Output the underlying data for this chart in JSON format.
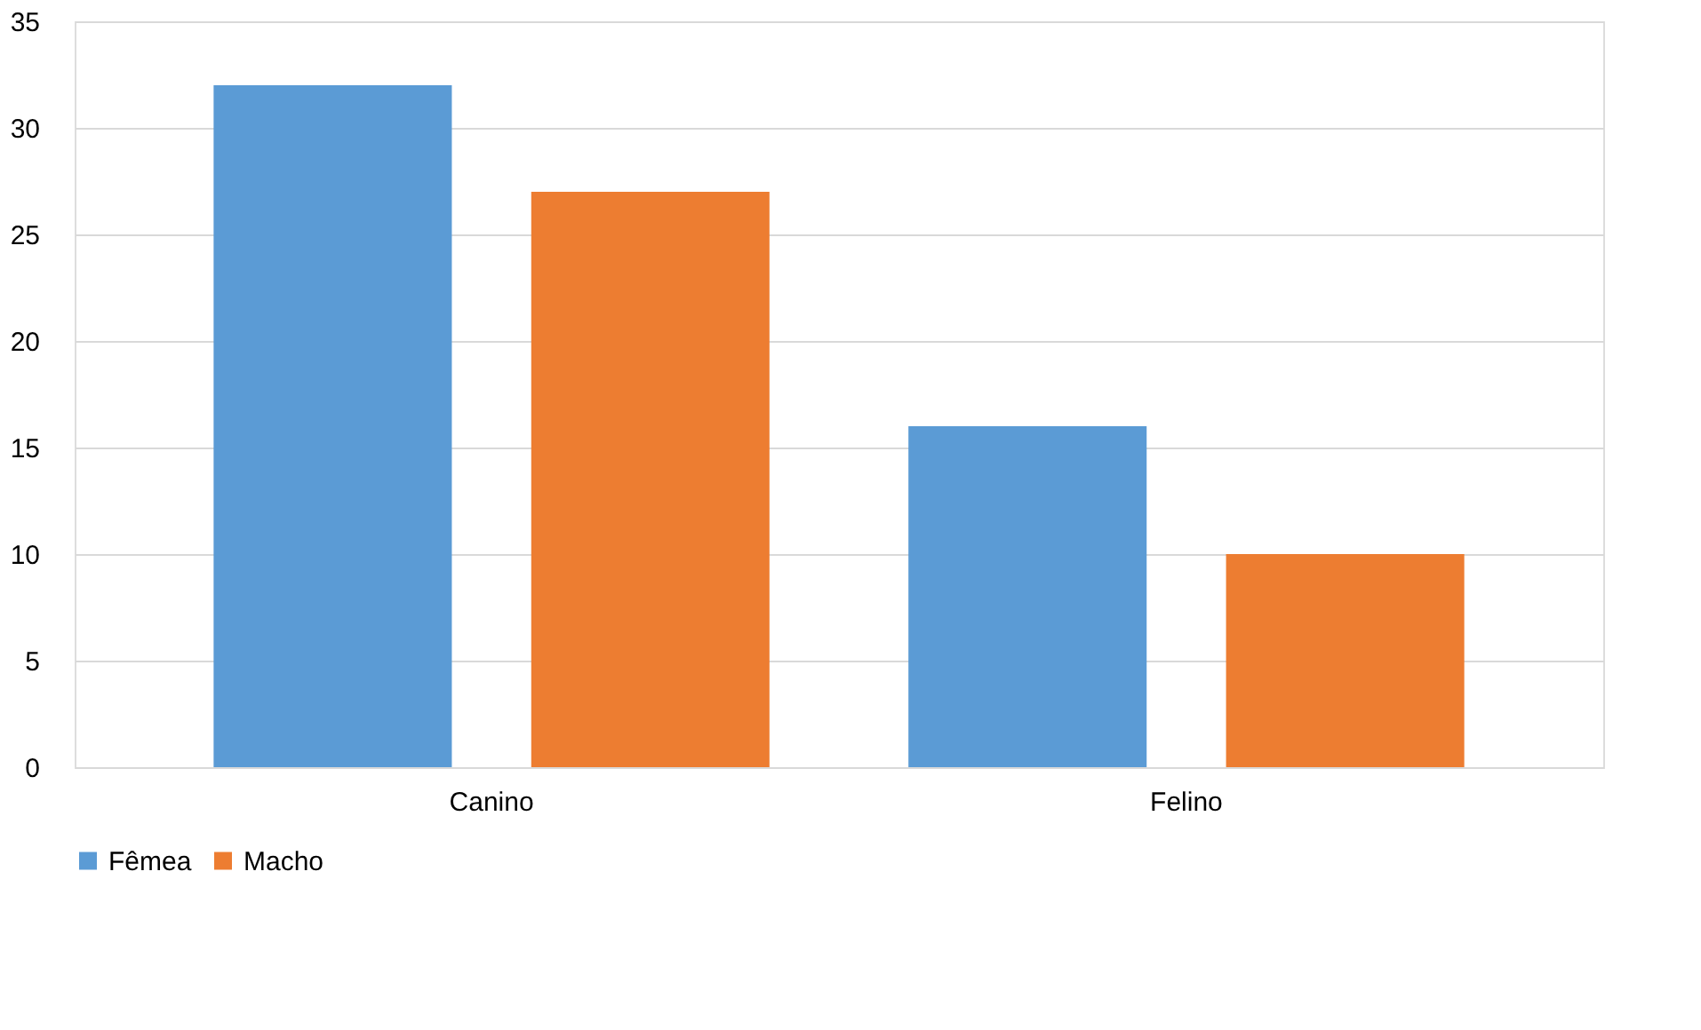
{
  "chart_data": {
    "type": "bar",
    "categories": [
      "Canino",
      "Felino"
    ],
    "series": [
      {
        "name": "Fêmea",
        "color": "#5b9bd5",
        "values": [
          32,
          16
        ]
      },
      {
        "name": "Macho",
        "color": "#ed7d31",
        "values": [
          27,
          10
        ]
      }
    ],
    "ylim": [
      0,
      35
    ],
    "yticks": [
      0,
      5,
      10,
      15,
      20,
      25,
      30,
      35
    ],
    "grid": "y",
    "legend": "bottom"
  }
}
